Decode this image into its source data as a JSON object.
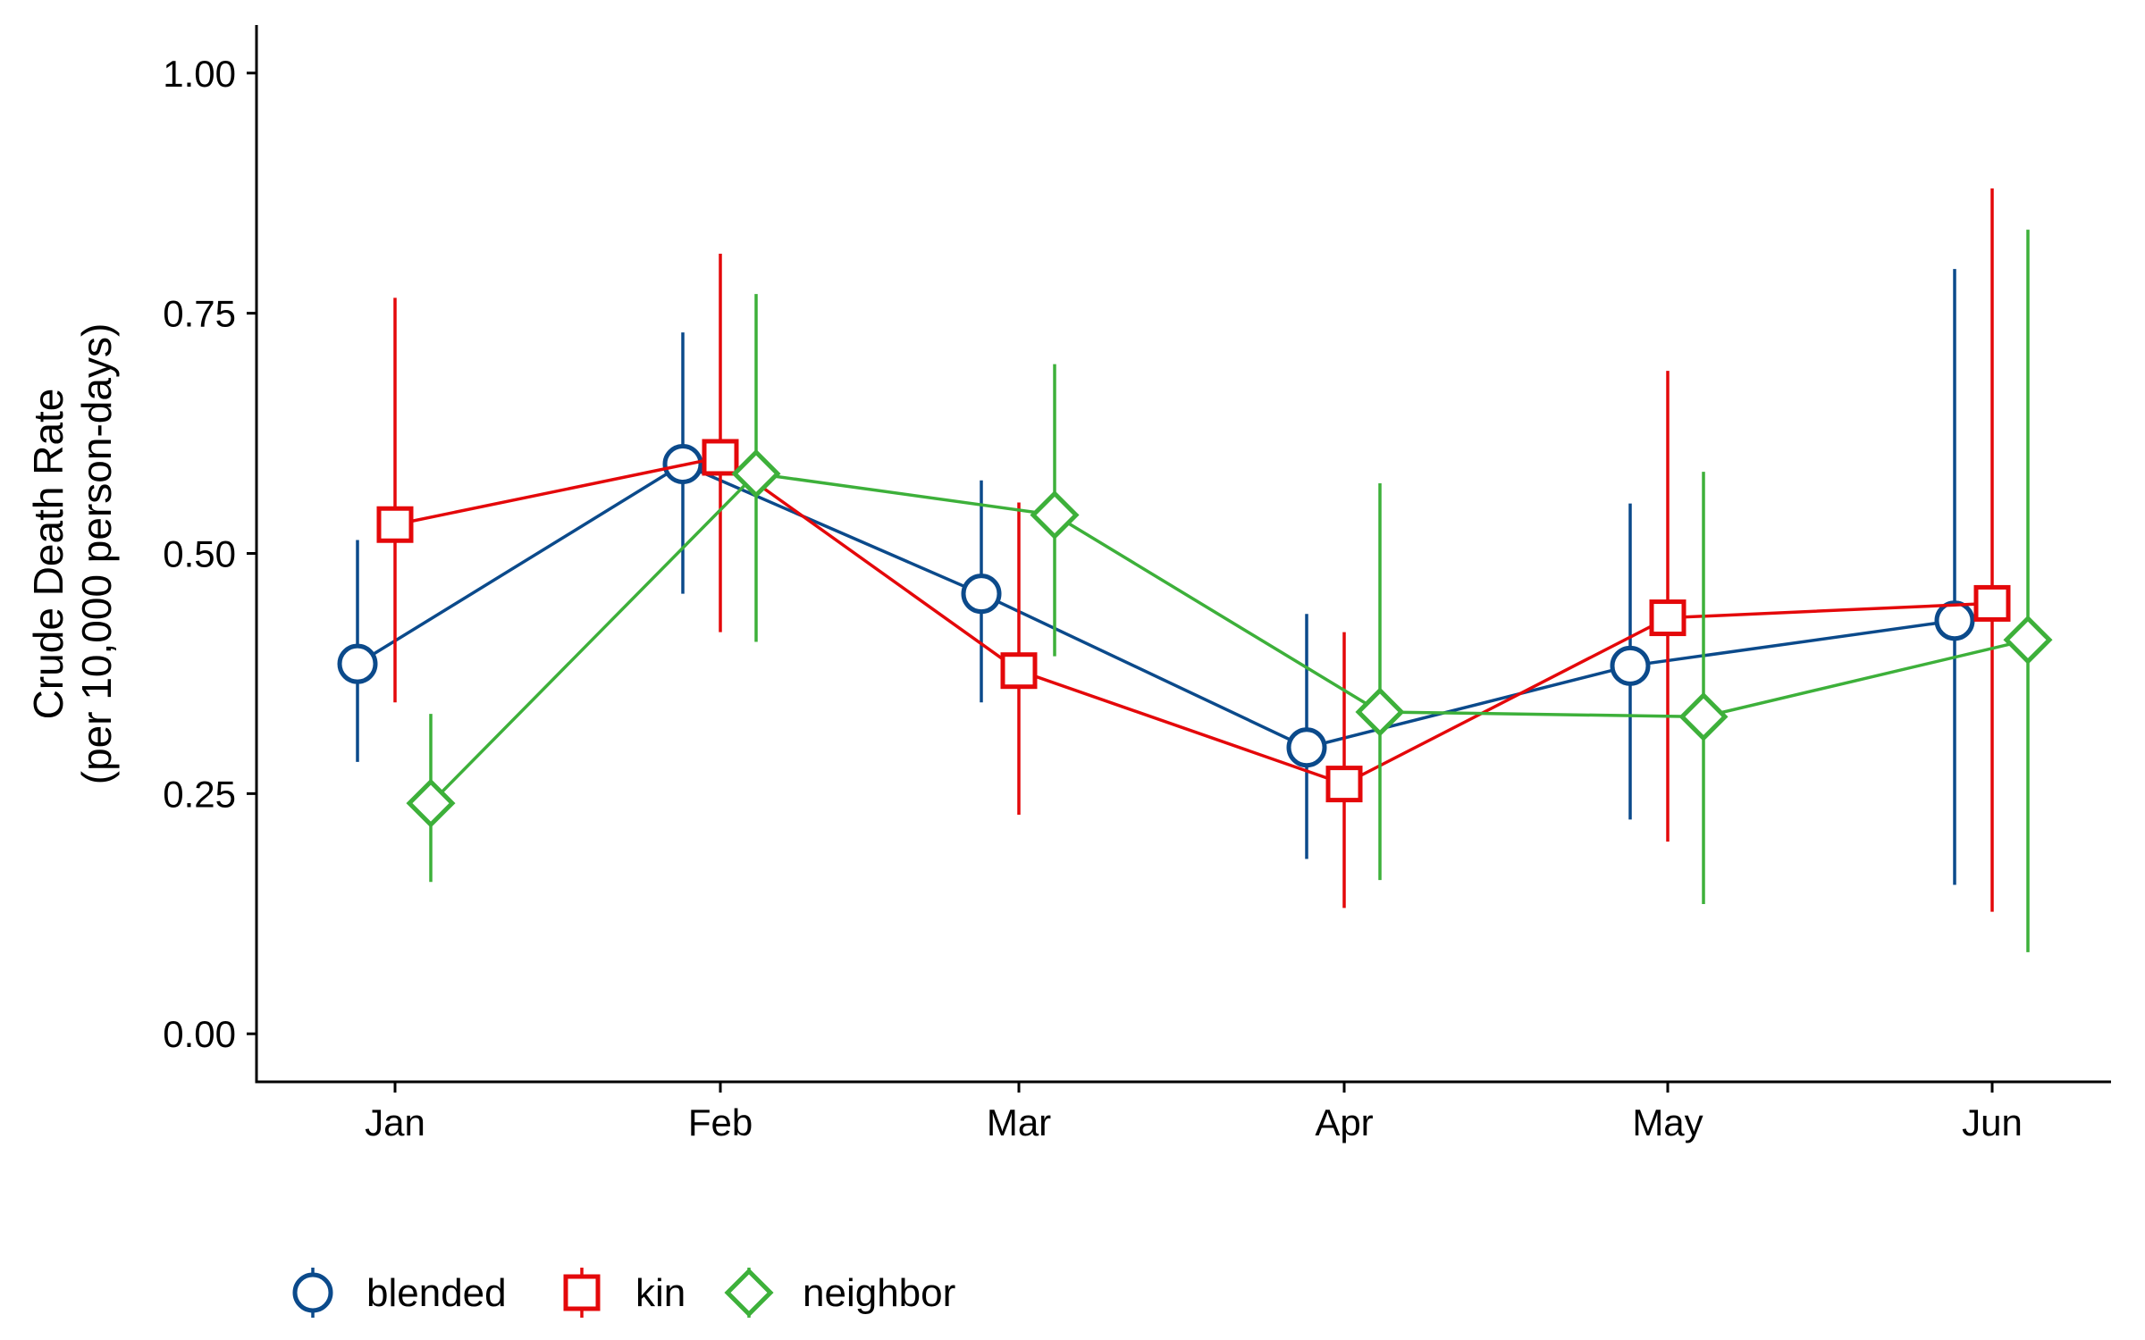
{
  "chart_data": {
    "type": "line",
    "title": "",
    "ylabel": [
      "Crude Death Rate",
      "(per 10,000 person-days)"
    ],
    "xlabel": "",
    "categories": [
      "Jan",
      "Feb",
      "Mar",
      "Apr",
      "May",
      "Jun"
    ],
    "ylim": [
      -0.05,
      1.05
    ],
    "yticks": [
      0.0,
      0.25,
      0.5,
      0.75,
      1.0
    ],
    "ytick_labels": [
      "0.00",
      "0.25",
      "0.50",
      "0.75",
      "1.00"
    ],
    "grid": false,
    "legend_position": "bottom-left",
    "series": [
      {
        "name": "blended",
        "marker": "circle",
        "color": "#0B4A8B",
        "values": [
          0.385,
          0.593,
          0.458,
          0.298,
          0.383,
          0.43
        ],
        "lower": [
          0.283,
          0.458,
          0.345,
          0.182,
          0.223,
          0.155
        ],
        "upper": [
          0.514,
          0.73,
          0.576,
          0.437,
          0.552,
          0.796
        ]
      },
      {
        "name": "kin",
        "marker": "square",
        "color": "#E4080A",
        "values": [
          0.53,
          0.6,
          0.378,
          0.26,
          0.433,
          0.448
        ],
        "lower": [
          0.345,
          0.418,
          0.228,
          0.131,
          0.2,
          0.127
        ],
        "upper": [
          0.766,
          0.812,
          0.553,
          0.418,
          0.69,
          0.88
        ]
      },
      {
        "name": "neighbor",
        "marker": "diamond",
        "color": "#3DB03A",
        "values": [
          0.24,
          0.583,
          0.54,
          0.335,
          0.33,
          0.41
        ],
        "lower": [
          0.158,
          0.408,
          0.393,
          0.16,
          0.135,
          0.085
        ],
        "upper": [
          0.333,
          0.77,
          0.697,
          0.573,
          0.585,
          0.837
        ]
      }
    ]
  }
}
